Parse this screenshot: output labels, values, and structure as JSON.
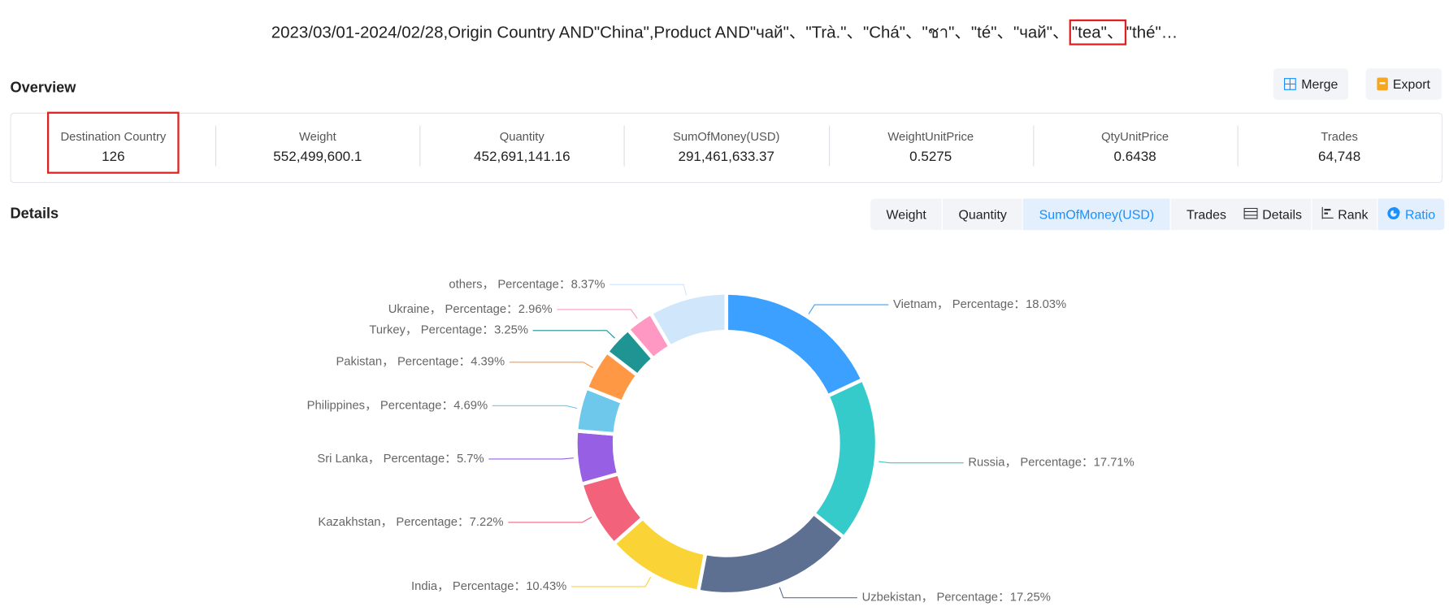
{
  "header": {
    "query": {
      "before": "2023/03/01-2024/02/28,Origin Country AND\"China\",Product AND\"чай\"、\"Trà.\"、\"Chá\"、\"ชา\"、\"té\"、\"чай\"、",
      "highlight": "\"tea\"、",
      "after": "\"thé\"…"
    }
  },
  "overview": {
    "title": "Overview",
    "buttons": [
      "Merge",
      "Export"
    ],
    "stats": [
      {
        "label": "Destination Country",
        "value": "126"
      },
      {
        "label": "Weight",
        "value": "552,499,600.1"
      },
      {
        "label": "Quantity",
        "value": "452,691,141.16"
      },
      {
        "label": "SumOfMoney(USD)",
        "value": "291,461,633.37"
      },
      {
        "label": "WeightUnitPrice",
        "value": "0.5275"
      },
      {
        "label": "QtyUnitPrice",
        "value": "0.6438"
      },
      {
        "label": "Trades",
        "value": "64,748"
      }
    ],
    "highlighted_stat": 0
  },
  "details": {
    "title": "Details",
    "metric_tabs": [
      "Weight",
      "Quantity",
      "SumOfMoney(USD)",
      "Trades"
    ],
    "active_metric": 2,
    "view_tabs": [
      "Details",
      "Rank",
      "Ratio"
    ],
    "active_view": 2
  },
  "chart_data": {
    "type": "pie",
    "donut": true,
    "values": [
      18.03,
      17.71,
      17.25,
      10.43,
      7.22,
      5.7,
      4.69,
      4.39,
      3.25,
      2.96,
      8.37
    ],
    "value_labels": [
      "Vietnam， Percentage：18.03%",
      "Russia， Percentage：17.71%",
      "Uzbekistan， Percentage：17.25%",
      "India， Percentage：10.43%",
      "Kazakhstan， Percentage：7.22%",
      "Sri Lanka， Percentage：5.7%",
      "Philippines， Percentage：4.69%",
      "Pakistan， Percentage：4.39%",
      "Turkey， Percentage：3.25%",
      "Ukraine， Percentage：2.96%",
      "others， Percentage：8.37%"
    ],
    "colors": [
      "#3ba0ff",
      "#36cbcb",
      "#5d7092",
      "#fad337",
      "#f2637b",
      "#975fe4",
      "#6dc8ec",
      "#ff9845",
      "#1e9493",
      "#ff99c3",
      "#cfe6fb"
    ]
  }
}
